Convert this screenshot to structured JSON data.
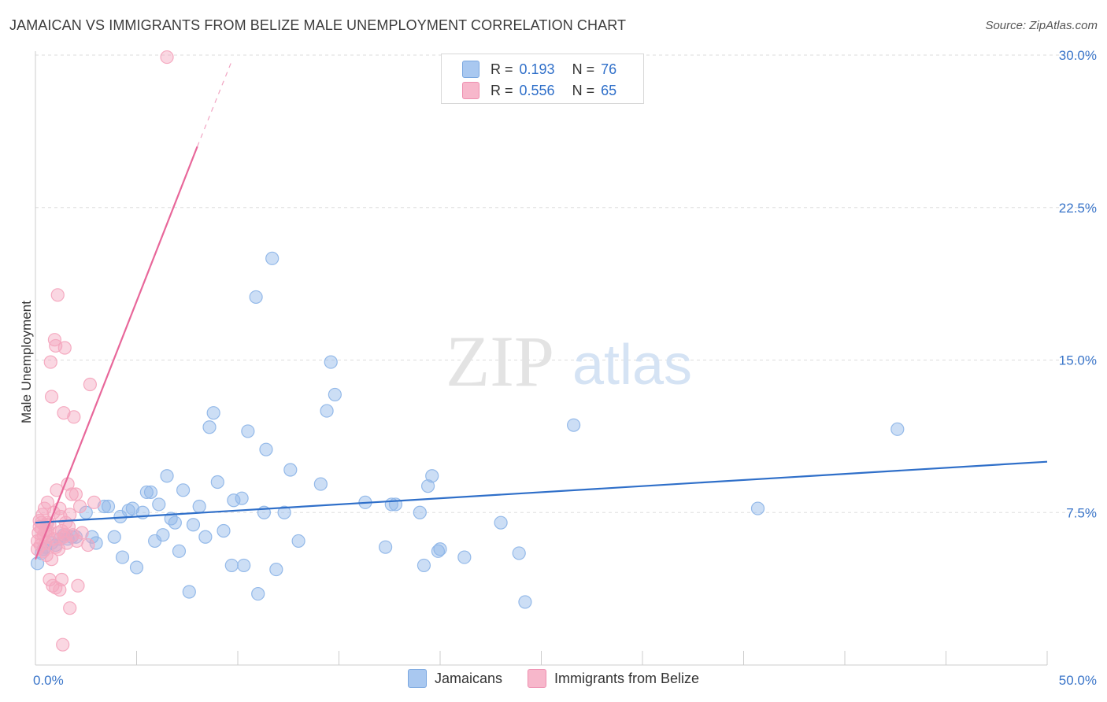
{
  "title": "JAMAICAN VS IMMIGRANTS FROM BELIZE MALE UNEMPLOYMENT CORRELATION CHART",
  "source": "Source: ZipAtlas.com",
  "watermark": {
    "zip": "ZIP",
    "atlas": "atlas"
  },
  "legend_top": {
    "rows": [
      {
        "r_label": "R =",
        "r_value": "0.193",
        "n_label": "N =",
        "n_value": "76",
        "color": "#a9c8f0"
      },
      {
        "r_label": "R =",
        "r_value": "0.556",
        "n_label": "N =",
        "n_value": "65",
        "color": "#f7b7cb"
      }
    ]
  },
  "legend_bottom": [
    {
      "label": "Jamaicans",
      "color": "#a9c8f0"
    },
    {
      "label": "Immigrants from Belize",
      "color": "#f7b7cb"
    }
  ],
  "chart_data": {
    "type": "scatter",
    "xlabel": "",
    "ylabel": "Male Unemployment",
    "xlim": [
      0,
      50
    ],
    "ylim": [
      0,
      30
    ],
    "x_tick_labels": [
      "0.0%",
      "50.0%"
    ],
    "y_ticks": [
      7.5,
      15.0,
      22.5,
      30.0
    ],
    "y_tick_labels": [
      "7.5%",
      "15.0%",
      "22.5%",
      "30.0%"
    ],
    "grid": true,
    "series": [
      {
        "name": "Jamaicans",
        "color": "#8fb6e8",
        "line_color": "#2f6fc9",
        "trend": {
          "x": [
            0,
            50
          ],
          "y": [
            7.0,
            10.0
          ]
        },
        "points": [
          [
            0.1,
            5.0
          ],
          [
            0.3,
            5.5
          ],
          [
            0.5,
            5.8
          ],
          [
            0.8,
            6.0
          ],
          [
            1.0,
            5.9
          ],
          [
            1.2,
            6.2
          ],
          [
            1.4,
            6.4
          ],
          [
            1.6,
            6.2
          ],
          [
            1.8,
            6.3
          ],
          [
            2.0,
            6.3
          ],
          [
            2.5,
            7.5
          ],
          [
            2.8,
            6.3
          ],
          [
            3.0,
            6.0
          ],
          [
            3.4,
            7.8
          ],
          [
            3.6,
            7.8
          ],
          [
            3.9,
            6.3
          ],
          [
            4.2,
            7.3
          ],
          [
            4.3,
            5.3
          ],
          [
            4.6,
            7.6
          ],
          [
            4.8,
            7.7
          ],
          [
            5.0,
            4.8
          ],
          [
            5.3,
            7.5
          ],
          [
            5.5,
            8.5
          ],
          [
            5.7,
            8.5
          ],
          [
            5.9,
            6.1
          ],
          [
            6.1,
            7.9
          ],
          [
            6.3,
            6.4
          ],
          [
            6.5,
            9.3
          ],
          [
            6.7,
            7.2
          ],
          [
            6.9,
            7.0
          ],
          [
            7.1,
            5.6
          ],
          [
            7.3,
            8.6
          ],
          [
            7.6,
            3.6
          ],
          [
            7.8,
            6.9
          ],
          [
            8.1,
            7.8
          ],
          [
            8.4,
            6.3
          ],
          [
            8.6,
            11.7
          ],
          [
            8.8,
            12.4
          ],
          [
            9.3,
            6.6
          ],
          [
            9.0,
            9.0
          ],
          [
            9.7,
            4.9
          ],
          [
            9.8,
            8.1
          ],
          [
            10.2,
            8.2
          ],
          [
            10.3,
            4.9
          ],
          [
            10.5,
            11.5
          ],
          [
            10.9,
            18.1
          ],
          [
            11.0,
            3.5
          ],
          [
            11.3,
            7.5
          ],
          [
            11.4,
            10.6
          ],
          [
            11.7,
            20.0
          ],
          [
            11.9,
            4.7
          ],
          [
            12.3,
            7.5
          ],
          [
            12.6,
            9.6
          ],
          [
            13.0,
            6.1
          ],
          [
            14.1,
            8.9
          ],
          [
            14.4,
            12.5
          ],
          [
            14.6,
            14.9
          ],
          [
            14.8,
            13.3
          ],
          [
            16.3,
            8.0
          ],
          [
            17.3,
            5.8
          ],
          [
            17.6,
            7.9
          ],
          [
            17.8,
            7.9
          ],
          [
            19.0,
            7.5
          ],
          [
            19.2,
            4.9
          ],
          [
            19.4,
            8.8
          ],
          [
            19.6,
            9.3
          ],
          [
            19.9,
            5.6
          ],
          [
            20.0,
            5.7
          ],
          [
            21.2,
            5.3
          ],
          [
            23.0,
            7.0
          ],
          [
            23.9,
            5.5
          ],
          [
            24.2,
            3.1
          ],
          [
            26.6,
            11.8
          ],
          [
            35.7,
            7.7
          ],
          [
            42.6,
            11.6
          ],
          [
            0.4,
            5.7
          ]
        ]
      },
      {
        "name": "Immigrants from Belize",
        "color": "#f4a6be",
        "line_color": "#e8679a",
        "trend": {
          "x": [
            0,
            8
          ],
          "y": [
            5.2,
            25.5
          ]
        },
        "trend_dashed": {
          "x": [
            8,
            9.7
          ],
          "y": [
            25.5,
            29.7
          ]
        },
        "points": [
          [
            0.1,
            5.7
          ],
          [
            0.1,
            6.1
          ],
          [
            0.15,
            6.5
          ],
          [
            0.2,
            6.8
          ],
          [
            0.2,
            7.1
          ],
          [
            0.25,
            5.9
          ],
          [
            0.3,
            6.2
          ],
          [
            0.3,
            6.7
          ],
          [
            0.35,
            7.4
          ],
          [
            0.4,
            5.6
          ],
          [
            0.4,
            6.4
          ],
          [
            0.45,
            7.7
          ],
          [
            0.5,
            6.0
          ],
          [
            0.5,
            6.6
          ],
          [
            0.55,
            5.4
          ],
          [
            0.6,
            7.0
          ],
          [
            0.6,
            8.0
          ],
          [
            0.65,
            6.3
          ],
          [
            0.7,
            4.2
          ],
          [
            0.7,
            6.9
          ],
          [
            0.75,
            14.9
          ],
          [
            0.8,
            13.2
          ],
          [
            0.8,
            5.2
          ],
          [
            0.85,
            3.9
          ],
          [
            0.9,
            7.5
          ],
          [
            0.9,
            6.2
          ],
          [
            0.95,
            16.0
          ],
          [
            1.0,
            3.8
          ],
          [
            1.0,
            15.7
          ],
          [
            1.05,
            8.6
          ],
          [
            1.1,
            6.5
          ],
          [
            1.1,
            18.2
          ],
          [
            1.15,
            5.7
          ],
          [
            1.2,
            3.7
          ],
          [
            1.2,
            7.7
          ],
          [
            1.25,
            7.3
          ],
          [
            1.3,
            6.6
          ],
          [
            1.3,
            4.2
          ],
          [
            1.35,
            1.0
          ],
          [
            1.4,
            6.3
          ],
          [
            1.4,
            12.4
          ],
          [
            1.45,
            15.6
          ],
          [
            1.5,
            6.4
          ],
          [
            1.5,
            7.0
          ],
          [
            1.55,
            6.0
          ],
          [
            1.6,
            8.9
          ],
          [
            1.65,
            6.8
          ],
          [
            1.7,
            2.8
          ],
          [
            1.7,
            7.4
          ],
          [
            1.8,
            8.4
          ],
          [
            1.85,
            6.4
          ],
          [
            1.9,
            12.2
          ],
          [
            2.0,
            8.4
          ],
          [
            2.05,
            6.1
          ],
          [
            2.1,
            3.9
          ],
          [
            2.2,
            7.8
          ],
          [
            2.3,
            6.5
          ],
          [
            2.6,
            5.9
          ],
          [
            2.7,
            13.8
          ],
          [
            2.9,
            8.0
          ],
          [
            0.3,
            7.0
          ],
          [
            0.6,
            6.6
          ],
          [
            1.0,
            5.8
          ],
          [
            6.5,
            29.9
          ],
          [
            0.55,
            6.9
          ]
        ]
      }
    ]
  }
}
